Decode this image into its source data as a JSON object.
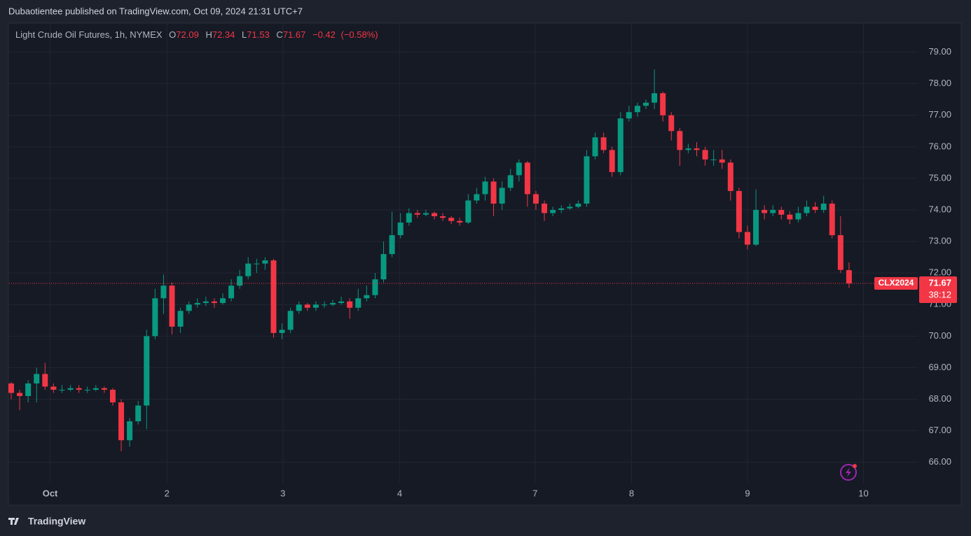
{
  "header": {
    "published": "Dubaotientee published on TradingView.com, Oct 09, 2024 21:31 UTC+7"
  },
  "footer": {
    "brand": "TradingView"
  },
  "chart_data": {
    "type": "candlestick",
    "legend": {
      "symbol": "Light Crude Oil Futures, 1h, NYMEX",
      "labels": [
        "O",
        "H",
        "L",
        "C"
      ],
      "values": [
        72.09,
        72.34,
        71.53,
        71.67
      ],
      "change": "−0.42",
      "change_pct": "(−0.58%)"
    },
    "price_tag": {
      "ticker": "CLX2024",
      "countdown": "38:12"
    },
    "up_color": "#089981",
    "down_color": "#f23645",
    "grid": true,
    "ylim": [
      65.35,
      79.9
    ],
    "yticks": [
      {
        "value": 66,
        "label": "66.00"
      },
      {
        "value": 67,
        "label": "67.00"
      },
      {
        "value": 68,
        "label": "68.00"
      },
      {
        "value": 69,
        "label": "69.00"
      },
      {
        "value": 70,
        "label": "70.00"
      },
      {
        "value": 71,
        "label": "71.00"
      },
      {
        "value": 72,
        "label": "72.00"
      },
      {
        "value": 73,
        "label": "73.00"
      },
      {
        "value": 74,
        "label": "74.00"
      },
      {
        "value": 75,
        "label": "75.00"
      },
      {
        "value": 76,
        "label": "76.00"
      },
      {
        "value": 77,
        "label": "77.00"
      },
      {
        "value": 78,
        "label": "78.00"
      },
      {
        "value": 79,
        "label": "79.00"
      }
    ],
    "xticks": [
      {
        "value": 4.6,
        "label": "Oct"
      },
      {
        "value": 18.4,
        "label": "2"
      },
      {
        "value": 32.1,
        "label": "3"
      },
      {
        "value": 45.9,
        "label": "4"
      },
      {
        "value": 61.9,
        "label": "7"
      },
      {
        "value": 73.3,
        "label": "8"
      },
      {
        "value": 87.0,
        "label": "9"
      },
      {
        "value": 100.7,
        "label": "10"
      }
    ],
    "candles": [
      [
        68.5,
        68.55,
        68.0,
        68.2
      ],
      [
        68.2,
        68.3,
        67.65,
        68.1
      ],
      [
        68.1,
        68.6,
        67.9,
        68.5
      ],
      [
        68.5,
        69.0,
        67.9,
        68.8
      ],
      [
        68.8,
        69.15,
        68.3,
        68.4
      ],
      [
        68.4,
        68.5,
        68.2,
        68.3
      ],
      [
        68.3,
        68.45,
        68.2,
        68.3
      ],
      [
        68.3,
        68.45,
        68.25,
        68.35
      ],
      [
        68.35,
        68.45,
        68.2,
        68.3
      ],
      [
        68.3,
        68.4,
        68.2,
        68.3
      ],
      [
        68.3,
        68.45,
        68.25,
        68.35
      ],
      [
        68.35,
        68.4,
        68.2,
        68.3
      ],
      [
        68.3,
        68.35,
        67.8,
        67.9
      ],
      [
        67.9,
        68.0,
        66.35,
        66.7
      ],
      [
        66.7,
        67.4,
        66.5,
        67.3
      ],
      [
        67.3,
        67.95,
        67.2,
        67.8
      ],
      [
        67.8,
        70.2,
        67.05,
        70.0
      ],
      [
        70.0,
        71.5,
        69.9,
        71.2
      ],
      [
        71.2,
        71.95,
        70.7,
        71.6
      ],
      [
        71.6,
        71.7,
        70.05,
        70.3
      ],
      [
        70.3,
        70.9,
        70.1,
        70.8
      ],
      [
        70.8,
        71.1,
        70.7,
        71.0
      ],
      [
        71.0,
        71.2,
        70.9,
        71.05
      ],
      [
        71.05,
        71.25,
        70.95,
        71.1
      ],
      [
        71.1,
        71.2,
        70.9,
        71.05
      ],
      [
        71.05,
        71.35,
        71.0,
        71.2
      ],
      [
        71.2,
        71.8,
        71.1,
        71.6
      ],
      [
        71.6,
        72.1,
        71.5,
        71.9
      ],
      [
        71.9,
        72.5,
        71.8,
        72.3
      ],
      [
        72.3,
        72.45,
        72.0,
        72.3
      ],
      [
        72.3,
        72.5,
        72.1,
        72.4
      ],
      [
        72.4,
        72.45,
        69.95,
        70.1
      ],
      [
        70.1,
        70.4,
        69.9,
        70.2
      ],
      [
        70.2,
        70.9,
        70.1,
        70.8
      ],
      [
        70.8,
        71.1,
        70.7,
        71.0
      ],
      [
        71.0,
        71.05,
        70.8,
        70.9
      ],
      [
        70.9,
        71.1,
        70.8,
        71.0
      ],
      [
        71.0,
        71.1,
        70.9,
        71.0
      ],
      [
        71.0,
        71.15,
        70.95,
        71.05
      ],
      [
        71.05,
        71.25,
        71.0,
        71.1
      ],
      [
        71.1,
        71.2,
        70.55,
        70.9
      ],
      [
        70.9,
        71.5,
        70.8,
        71.2
      ],
      [
        71.2,
        71.6,
        71.1,
        71.3
      ],
      [
        71.3,
        72.0,
        71.2,
        71.8
      ],
      [
        71.8,
        73.0,
        71.7,
        72.6
      ],
      [
        72.6,
        73.95,
        72.5,
        73.2
      ],
      [
        73.2,
        73.9,
        73.1,
        73.6
      ],
      [
        73.6,
        74.05,
        73.5,
        73.9
      ],
      [
        73.9,
        74.0,
        73.75,
        73.85
      ],
      [
        73.85,
        74.0,
        73.8,
        73.9
      ],
      [
        73.9,
        73.95,
        73.7,
        73.8
      ],
      [
        73.8,
        73.9,
        73.65,
        73.75
      ],
      [
        73.75,
        73.8,
        73.55,
        73.65
      ],
      [
        73.65,
        73.75,
        73.5,
        73.6
      ],
      [
        73.6,
        74.5,
        73.55,
        74.3
      ],
      [
        74.3,
        74.7,
        74.2,
        74.5
      ],
      [
        74.5,
        75.05,
        74.3,
        74.9
      ],
      [
        74.9,
        75.0,
        73.8,
        74.2
      ],
      [
        74.2,
        74.9,
        74.0,
        74.7
      ],
      [
        74.7,
        75.3,
        74.6,
        75.1
      ],
      [
        75.1,
        75.6,
        74.9,
        75.5
      ],
      [
        75.5,
        75.55,
        74.1,
        74.5
      ],
      [
        74.5,
        74.6,
        74.0,
        74.2
      ],
      [
        74.2,
        74.3,
        73.65,
        73.9
      ],
      [
        73.9,
        74.1,
        73.8,
        74.0
      ],
      [
        74.0,
        74.15,
        73.9,
        74.05
      ],
      [
        74.05,
        74.2,
        74.0,
        74.1
      ],
      [
        74.1,
        74.3,
        74.05,
        74.2
      ],
      [
        74.2,
        75.9,
        74.1,
        75.7
      ],
      [
        75.7,
        76.45,
        75.6,
        76.3
      ],
      [
        76.3,
        76.45,
        75.8,
        75.9
      ],
      [
        75.9,
        76.0,
        75.05,
        75.2
      ],
      [
        75.2,
        77.1,
        75.1,
        76.9
      ],
      [
        76.9,
        77.3,
        76.8,
        77.1
      ],
      [
        77.1,
        77.4,
        76.95,
        77.3
      ],
      [
        77.3,
        77.5,
        77.2,
        77.4
      ],
      [
        77.4,
        78.45,
        77.2,
        77.7
      ],
      [
        77.7,
        77.75,
        76.8,
        77.0
      ],
      [
        77.0,
        77.1,
        76.2,
        76.5
      ],
      [
        76.5,
        76.6,
        75.4,
        75.9
      ],
      [
        75.9,
        76.1,
        75.8,
        75.95
      ],
      [
        75.95,
        76.15,
        75.7,
        75.9
      ],
      [
        75.9,
        76.0,
        75.4,
        75.6
      ],
      [
        75.6,
        75.9,
        75.4,
        75.6
      ],
      [
        75.6,
        75.9,
        75.3,
        75.5
      ],
      [
        75.5,
        75.6,
        74.3,
        74.6
      ],
      [
        74.6,
        74.7,
        73.1,
        73.3
      ],
      [
        73.3,
        73.5,
        72.75,
        72.9
      ],
      [
        72.9,
        74.65,
        72.85,
        74.0
      ],
      [
        74.0,
        74.15,
        73.7,
        73.9
      ],
      [
        73.9,
        74.15,
        73.8,
        74.0
      ],
      [
        74.0,
        74.1,
        73.7,
        73.85
      ],
      [
        73.85,
        73.95,
        73.55,
        73.7
      ],
      [
        73.7,
        74.1,
        73.6,
        73.9
      ],
      [
        73.9,
        74.3,
        73.8,
        74.1
      ],
      [
        74.1,
        74.25,
        73.9,
        74.0
      ],
      [
        74.0,
        74.45,
        73.9,
        74.2
      ],
      [
        74.2,
        74.3,
        73.1,
        73.2
      ],
      [
        73.2,
        73.8,
        72.0,
        72.1
      ],
      [
        72.09,
        72.34,
        71.53,
        71.67
      ]
    ]
  }
}
